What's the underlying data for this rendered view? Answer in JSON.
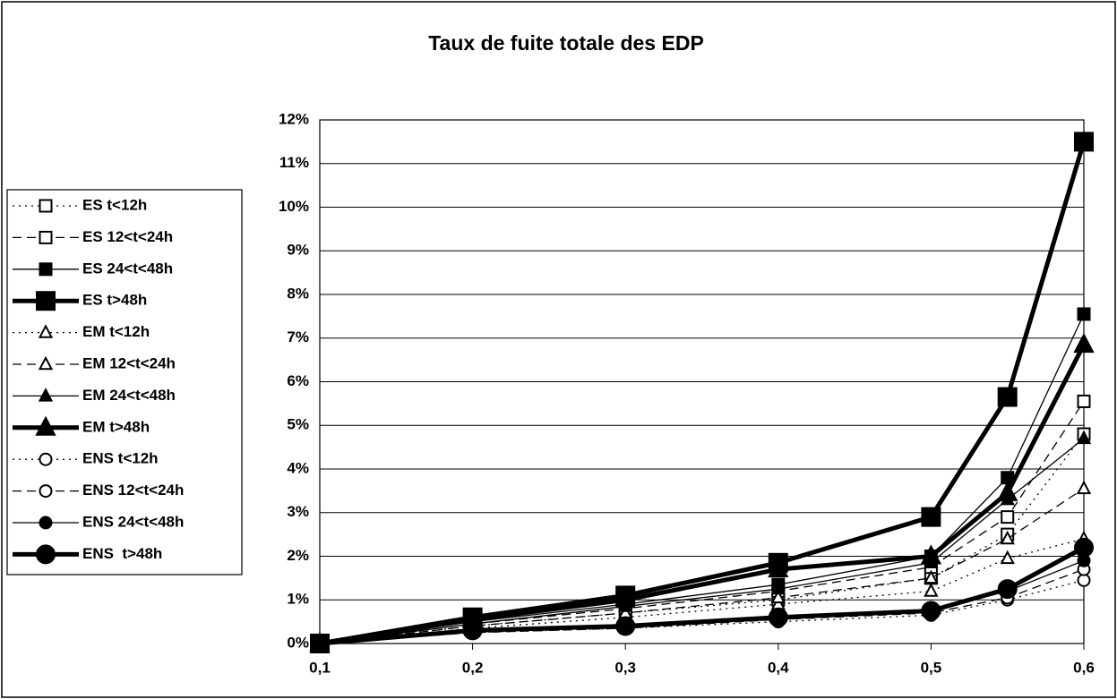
{
  "chart_data": {
    "type": "line",
    "title": "Taux de fuite totale des EDP",
    "x": [
      0.1,
      0.2,
      0.3,
      0.4,
      0.5,
      0.55,
      0.6
    ],
    "xlim": [
      0.1,
      0.6
    ],
    "xticks": [
      {
        "value": 0.1,
        "label": "0,1"
      },
      {
        "value": 0.2,
        "label": "0,2"
      },
      {
        "value": 0.3,
        "label": "0,3"
      },
      {
        "value": 0.4,
        "label": "0,4"
      },
      {
        "value": 0.5,
        "label": "0,5"
      },
      {
        "value": 0.6,
        "label": "0,6"
      }
    ],
    "ylim": [
      0,
      12
    ],
    "yticks": [
      {
        "value": 0,
        "label": "0%"
      },
      {
        "value": 1,
        "label": "1%"
      },
      {
        "value": 2,
        "label": "2%"
      },
      {
        "value": 3,
        "label": "3%"
      },
      {
        "value": 4,
        "label": "4%"
      },
      {
        "value": 5,
        "label": "5%"
      },
      {
        "value": 6,
        "label": "6%"
      },
      {
        "value": 7,
        "label": "7%"
      },
      {
        "value": 8,
        "label": "8%"
      },
      {
        "value": 9,
        "label": "9%"
      },
      {
        "value": 10,
        "label": "10%"
      },
      {
        "value": 11,
        "label": "11%"
      },
      {
        "value": 12,
        "label": "12%"
      }
    ],
    "grid": true,
    "legend": "left",
    "series": [
      {
        "name": "ES t<12h",
        "color": "#000000",
        "marker": "square",
        "filled": false,
        "style": "dotted",
        "values": [
          0,
          0.4,
          0.7,
          1.0,
          1.5,
          2.5,
          4.8
        ]
      },
      {
        "name": "ES 12<t<24h",
        "color": "#000000",
        "marker": "square",
        "filled": false,
        "style": "dashed",
        "values": [
          0,
          0.45,
          0.8,
          1.2,
          1.75,
          2.9,
          5.55
        ]
      },
      {
        "name": "ES 24<t<48h",
        "color": "#000000",
        "marker": "square",
        "filled": true,
        "style": "solid",
        "values": [
          0,
          0.5,
          0.9,
          1.35,
          2.0,
          3.8,
          7.55
        ]
      },
      {
        "name": "ES t>48h",
        "color": "#000000",
        "marker": "square",
        "filled": true,
        "style": "thick",
        "values": [
          0,
          0.6,
          1.1,
          1.85,
          2.9,
          5.65,
          11.5
        ]
      },
      {
        "name": "EM t<12h",
        "color": "#000000",
        "marker": "triangle",
        "filled": false,
        "style": "dotted",
        "values": [
          0,
          0.35,
          0.6,
          0.9,
          1.2,
          1.95,
          2.4
        ]
      },
      {
        "name": "EM 12<t<24h",
        "color": "#000000",
        "marker": "triangle",
        "filled": false,
        "style": "dashed",
        "values": [
          0,
          0.4,
          0.7,
          1.05,
          1.5,
          2.4,
          3.55
        ]
      },
      {
        "name": "EM 24<t<48h",
        "color": "#000000",
        "marker": "triangle",
        "filled": true,
        "style": "solid",
        "values": [
          0,
          0.45,
          0.85,
          1.25,
          1.85,
          3.3,
          4.7
        ]
      },
      {
        "name": "EM t>48h",
        "color": "#000000",
        "marker": "triangle",
        "filled": true,
        "style": "thick",
        "values": [
          0,
          0.55,
          1.0,
          1.7,
          2.0,
          3.45,
          6.85
        ]
      },
      {
        "name": "ENS t<12h",
        "color": "#000000",
        "marker": "circle",
        "filled": false,
        "style": "dotted",
        "values": [
          0,
          0.25,
          0.35,
          0.5,
          0.65,
          1.0,
          1.45
        ]
      },
      {
        "name": "ENS 12<t<24h",
        "color": "#000000",
        "marker": "circle",
        "filled": false,
        "style": "dashed",
        "values": [
          0,
          0.25,
          0.35,
          0.55,
          0.7,
          1.05,
          1.7
        ]
      },
      {
        "name": "ENS 24<t<48h",
        "color": "#000000",
        "marker": "circle",
        "filled": true,
        "style": "solid",
        "values": [
          0,
          0.3,
          0.4,
          0.55,
          0.75,
          1.2,
          1.9
        ]
      },
      {
        "name": "ENS  t>48h",
        "color": "#000000",
        "marker": "circle",
        "filled": true,
        "style": "thick",
        "values": [
          0,
          0.3,
          0.4,
          0.6,
          0.75,
          1.25,
          2.2
        ]
      }
    ]
  }
}
